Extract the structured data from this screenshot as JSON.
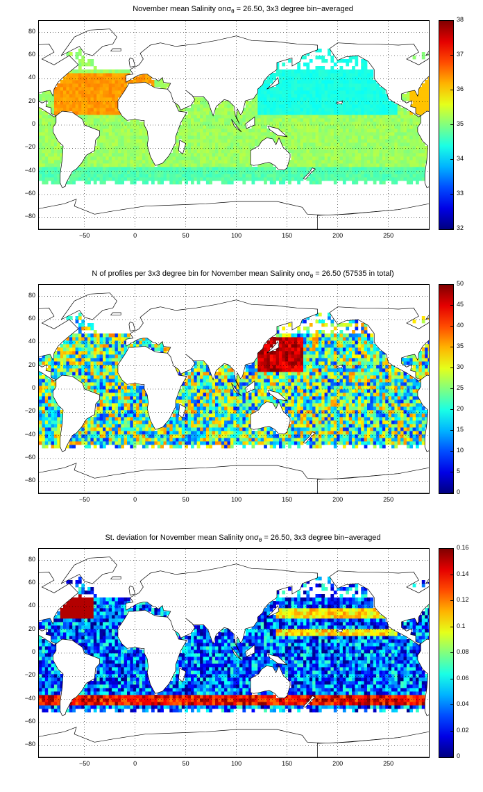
{
  "chart_data": [
    {
      "type": "heatmap",
      "title": {
        "prefix": "November mean Salinity on",
        "sigma": "σ",
        "sigma_sub": "θ",
        "suffix": " = 26.50, 3x3 degree bin−averaged"
      },
      "x_ticks": [
        "−50",
        "0",
        "50",
        "100",
        "150",
        "200",
        "250"
      ],
      "y_ticks": [
        "80",
        "60",
        "40",
        "20",
        "0",
        "−20",
        "−40",
        "−60",
        "−80"
      ],
      "xlim": [
        -95,
        290
      ],
      "ylim": [
        -90,
        90
      ],
      "grid": true,
      "colorbar": {
        "range": [
          32,
          38
        ],
        "ticks": [
          "38",
          "37",
          "36",
          "35",
          "34",
          "33",
          "32"
        ]
      },
      "field": "salinity"
    },
    {
      "type": "heatmap",
      "title": {
        "prefix": "N of profiles per 3x3 degree bin for November mean Salinity on",
        "sigma": "σ",
        "sigma_sub": "θ",
        "suffix": " = 26.50 (57535 in total)"
      },
      "x_ticks": [
        "−50",
        "0",
        "50",
        "100",
        "150",
        "200",
        "250"
      ],
      "y_ticks": [
        "80",
        "60",
        "40",
        "20",
        "0",
        "−20",
        "−40",
        "−60",
        "−80"
      ],
      "xlim": [
        -95,
        290
      ],
      "ylim": [
        -90,
        90
      ],
      "grid": true,
      "colorbar": {
        "range": [
          0,
          50
        ],
        "ticks": [
          "50",
          "45",
          "40",
          "35",
          "30",
          "25",
          "20",
          "15",
          "10",
          "5",
          "0"
        ]
      },
      "field": "count"
    },
    {
      "type": "heatmap",
      "title": {
        "prefix": "St. deviation for November mean Salinity on",
        "sigma": "σ",
        "sigma_sub": "θ",
        "suffix": " = 26.50, 3x3 degree bin−averaged"
      },
      "x_ticks": [
        "−50",
        "0",
        "50",
        "100",
        "150",
        "200",
        "250"
      ],
      "y_ticks": [
        "80",
        "60",
        "40",
        "20",
        "0",
        "−20",
        "−40",
        "−60",
        "−80"
      ],
      "xlim": [
        -95,
        290
      ],
      "ylim": [
        -90,
        90
      ],
      "grid": true,
      "colorbar": {
        "range": [
          0,
          0.16
        ],
        "ticks": [
          "0.16",
          "0.14",
          "0.12",
          "0.1",
          "0.08",
          "0.06",
          "0.04",
          "0.02",
          "0"
        ]
      },
      "field": "std"
    }
  ]
}
